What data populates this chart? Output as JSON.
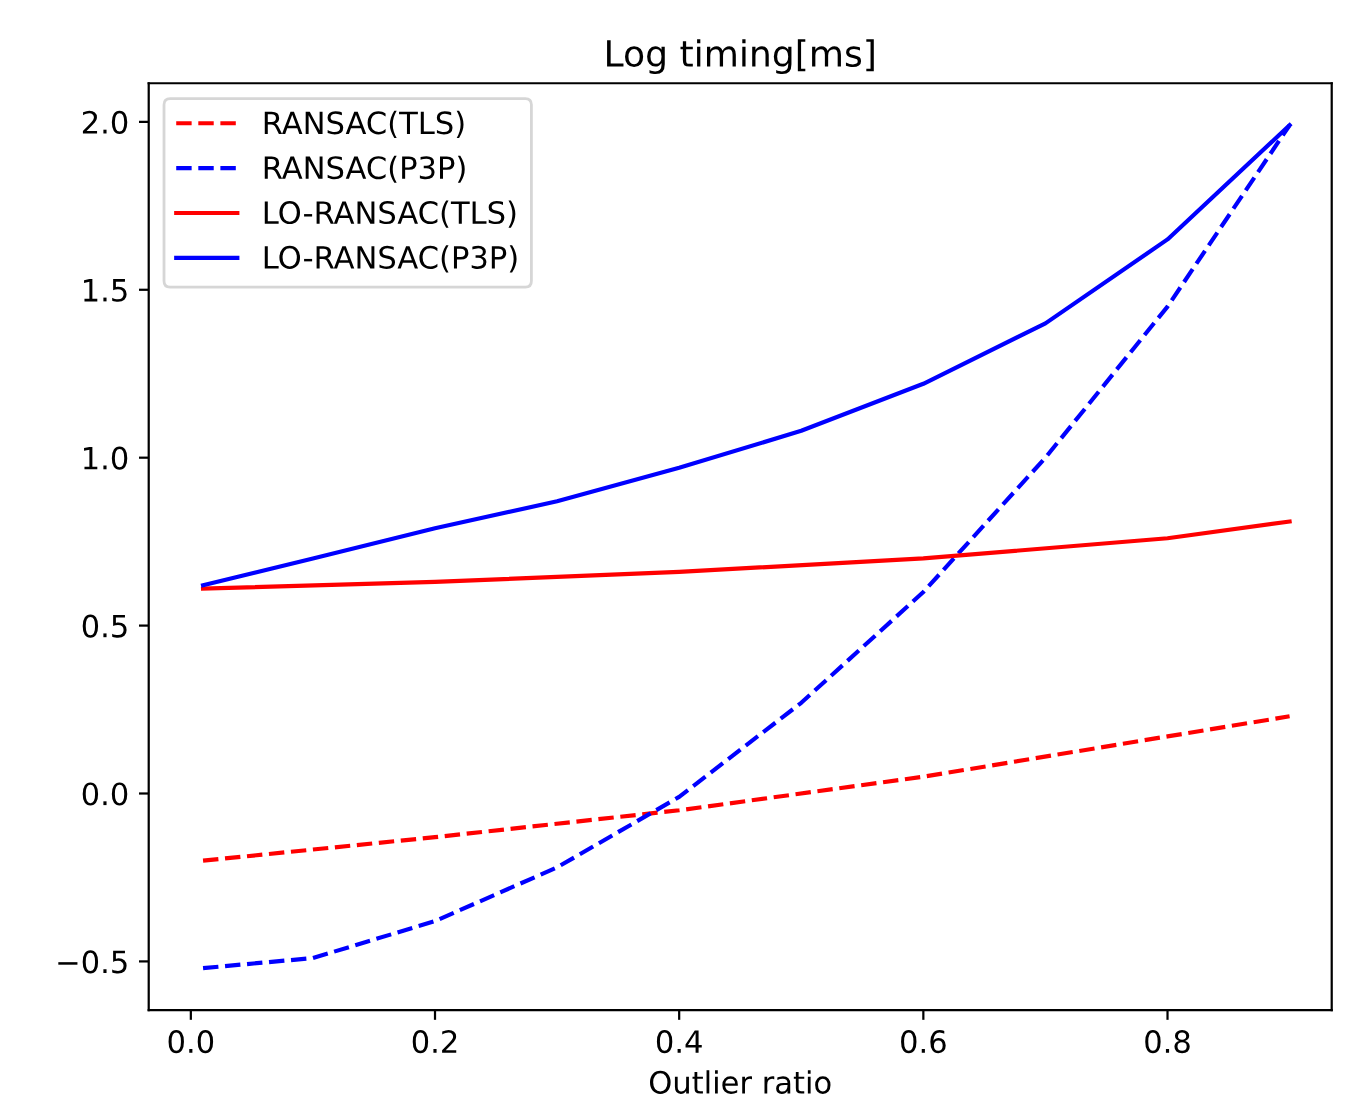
{
  "chart_data": {
    "type": "line",
    "title": "Log timing[ms]",
    "xlabel": "Outlier ratio",
    "xlim": [
      -0.0345,
      0.9345
    ],
    "ylim": [
      -0.645,
      2.115
    ],
    "xticks": [
      {
        "value": 0.0,
        "label": "0.0"
      },
      {
        "value": 0.2,
        "label": "0.2"
      },
      {
        "value": 0.4,
        "label": "0.4"
      },
      {
        "value": 0.6,
        "label": "0.6"
      },
      {
        "value": 0.8,
        "label": "0.8"
      }
    ],
    "yticks": [
      {
        "value": -0.5,
        "label": "−0.5"
      },
      {
        "value": 0.0,
        "label": "0.0"
      },
      {
        "value": 0.5,
        "label": "0.5"
      },
      {
        "value": 1.0,
        "label": "1.0"
      },
      {
        "value": 1.5,
        "label": "1.5"
      },
      {
        "value": 2.0,
        "label": "2.0"
      }
    ],
    "grid": false,
    "legend": "top left",
    "marker": "none",
    "series": [
      {
        "name": "RANSAC(TLS)",
        "color": "#ff0000",
        "line_style": "dashed",
        "x": [
          0.01,
          0.2,
          0.4,
          0.6,
          0.8,
          0.9
        ],
        "values": [
          -0.2,
          -0.13,
          -0.05,
          0.05,
          0.17,
          0.23
        ]
      },
      {
        "name": "RANSAC(P3P)",
        "color": "#0000ff",
        "line_style": "dashed",
        "x": [
          0.01,
          0.1,
          0.2,
          0.3,
          0.4,
          0.5,
          0.6,
          0.7,
          0.8,
          0.9
        ],
        "values": [
          -0.52,
          -0.49,
          -0.38,
          -0.22,
          -0.01,
          0.27,
          0.6,
          1.0,
          1.45,
          1.99
        ]
      },
      {
        "name": "LO-RANSAC(TLS)",
        "color": "#ff0000",
        "line_style": "solid",
        "x": [
          0.01,
          0.2,
          0.4,
          0.6,
          0.8,
          0.9
        ],
        "values": [
          0.61,
          0.63,
          0.66,
          0.7,
          0.76,
          0.81
        ]
      },
      {
        "name": "LO-RANSAC(P3P)",
        "color": "#0000ff",
        "line_style": "solid",
        "x": [
          0.01,
          0.1,
          0.2,
          0.3,
          0.4,
          0.5,
          0.6,
          0.7,
          0.8,
          0.9
        ],
        "values": [
          0.62,
          0.7,
          0.79,
          0.87,
          0.97,
          1.08,
          1.22,
          1.4,
          1.65,
          1.99
        ]
      }
    ]
  }
}
